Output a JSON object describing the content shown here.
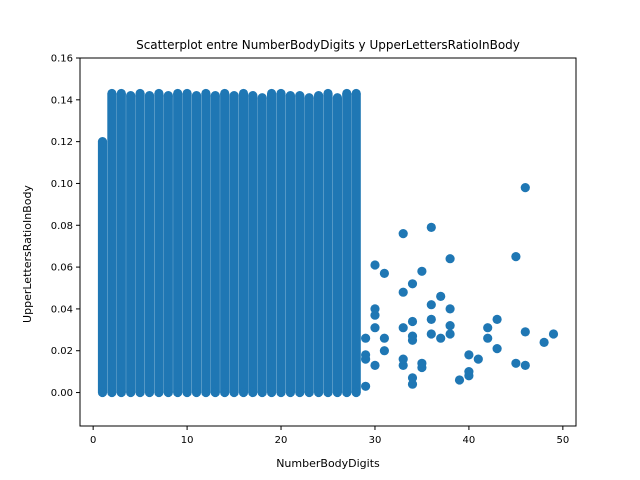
{
  "chart_data": {
    "type": "scatter",
    "title": "Scatterplot entre NumberBodyDigits y UpperLettersRatioInBody",
    "xlabel": "NumberBodyDigits",
    "ylabel": "UpperLettersRatioInBody",
    "xlim": [
      -1.4,
      51.4
    ],
    "ylim": [
      -0.016,
      0.16
    ],
    "xticks": [
      0,
      10,
      20,
      30,
      40,
      50
    ],
    "yticks": [
      0.0,
      0.02,
      0.04,
      0.06,
      0.08,
      0.1,
      0.12,
      0.14,
      0.16
    ],
    "ytick_labels": [
      "0.00",
      "0.02",
      "0.04",
      "0.06",
      "0.08",
      "0.10",
      "0.12",
      "0.14",
      "0.16"
    ],
    "grid": false,
    "marker_color": "#1f77b4",
    "dense_columns": [
      {
        "x": 1,
        "ymax": 0.12
      },
      {
        "x": 2,
        "ymax": 0.143
      },
      {
        "x": 3,
        "ymax": 0.143
      },
      {
        "x": 4,
        "ymax": 0.142
      },
      {
        "x": 5,
        "ymax": 0.143
      },
      {
        "x": 6,
        "ymax": 0.142
      },
      {
        "x": 7,
        "ymax": 0.143
      },
      {
        "x": 8,
        "ymax": 0.142
      },
      {
        "x": 9,
        "ymax": 0.143
      },
      {
        "x": 10,
        "ymax": 0.143
      },
      {
        "x": 11,
        "ymax": 0.142
      },
      {
        "x": 12,
        "ymax": 0.143
      },
      {
        "x": 13,
        "ymax": 0.142
      },
      {
        "x": 14,
        "ymax": 0.143
      },
      {
        "x": 15,
        "ymax": 0.142
      },
      {
        "x": 16,
        "ymax": 0.143
      },
      {
        "x": 17,
        "ymax": 0.142
      },
      {
        "x": 18,
        "ymax": 0.141
      },
      {
        "x": 19,
        "ymax": 0.143
      },
      {
        "x": 20,
        "ymax": 0.143
      },
      {
        "x": 21,
        "ymax": 0.142
      },
      {
        "x": 22,
        "ymax": 0.142
      },
      {
        "x": 23,
        "ymax": 0.141
      },
      {
        "x": 24,
        "ymax": 0.142
      },
      {
        "x": 25,
        "ymax": 0.143
      },
      {
        "x": 26,
        "ymax": 0.141
      },
      {
        "x": 27,
        "ymax": 0.143
      },
      {
        "x": 28,
        "ymax": 0.143
      }
    ],
    "points": [
      {
        "x": 29,
        "y": 0.003
      },
      {
        "x": 29,
        "y": 0.016
      },
      {
        "x": 29,
        "y": 0.018
      },
      {
        "x": 29,
        "y": 0.026
      },
      {
        "x": 30,
        "y": 0.013
      },
      {
        "x": 30,
        "y": 0.031
      },
      {
        "x": 30,
        "y": 0.037
      },
      {
        "x": 30,
        "y": 0.04
      },
      {
        "x": 30,
        "y": 0.061
      },
      {
        "x": 31,
        "y": 0.02
      },
      {
        "x": 31,
        "y": 0.026
      },
      {
        "x": 31,
        "y": 0.057
      },
      {
        "x": 33,
        "y": 0.013
      },
      {
        "x": 33,
        "y": 0.016
      },
      {
        "x": 33,
        "y": 0.031
      },
      {
        "x": 33,
        "y": 0.048
      },
      {
        "x": 33,
        "y": 0.076
      },
      {
        "x": 34,
        "y": 0.004
      },
      {
        "x": 34,
        "y": 0.007
      },
      {
        "x": 34,
        "y": 0.025
      },
      {
        "x": 34,
        "y": 0.027
      },
      {
        "x": 34,
        "y": 0.034
      },
      {
        "x": 34,
        "y": 0.052
      },
      {
        "x": 35,
        "y": 0.012
      },
      {
        "x": 35,
        "y": 0.014
      },
      {
        "x": 35,
        "y": 0.058
      },
      {
        "x": 36,
        "y": 0.028
      },
      {
        "x": 36,
        "y": 0.035
      },
      {
        "x": 36,
        "y": 0.042
      },
      {
        "x": 36,
        "y": 0.079
      },
      {
        "x": 37,
        "y": 0.026
      },
      {
        "x": 37,
        "y": 0.046
      },
      {
        "x": 38,
        "y": 0.028
      },
      {
        "x": 38,
        "y": 0.032
      },
      {
        "x": 38,
        "y": 0.04
      },
      {
        "x": 38,
        "y": 0.064
      },
      {
        "x": 39,
        "y": 0.006
      },
      {
        "x": 40,
        "y": 0.008
      },
      {
        "x": 40,
        "y": 0.01
      },
      {
        "x": 40,
        "y": 0.018
      },
      {
        "x": 41,
        "y": 0.016
      },
      {
        "x": 42,
        "y": 0.026
      },
      {
        "x": 42,
        "y": 0.031
      },
      {
        "x": 43,
        "y": 0.021
      },
      {
        "x": 43,
        "y": 0.035
      },
      {
        "x": 45,
        "y": 0.014
      },
      {
        "x": 45,
        "y": 0.065
      },
      {
        "x": 46,
        "y": 0.013
      },
      {
        "x": 46,
        "y": 0.029
      },
      {
        "x": 46,
        "y": 0.098
      },
      {
        "x": 48,
        "y": 0.024
      },
      {
        "x": 49,
        "y": 0.028
      }
    ]
  }
}
